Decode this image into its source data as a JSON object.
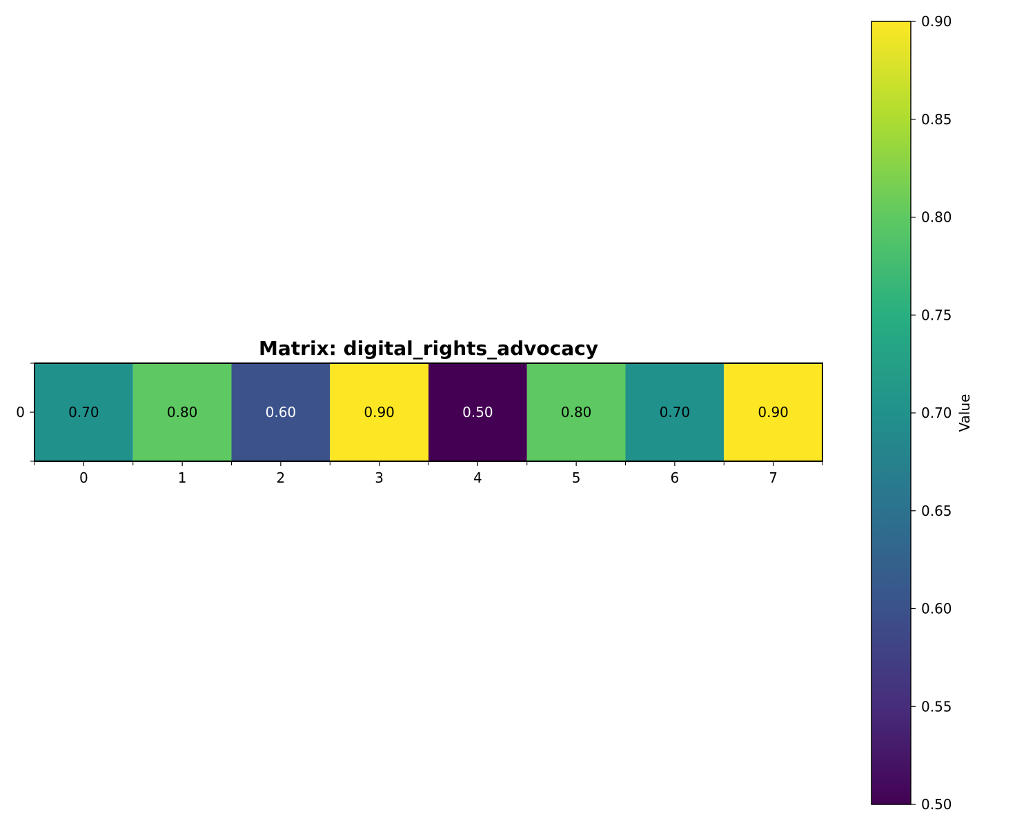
{
  "chart_data": {
    "type": "heatmap",
    "title": "Matrix: digital_rights_advocacy",
    "xlabel": "",
    "ylabel": "",
    "x_categories": [
      "0",
      "1",
      "2",
      "3",
      "4",
      "5",
      "6",
      "7"
    ],
    "y_categories": [
      "0"
    ],
    "values": [
      [
        0.7,
        0.8,
        0.6,
        0.9,
        0.5,
        0.8,
        0.7,
        0.9
      ]
    ],
    "cell_labels": [
      [
        "0.70",
        "0.80",
        "0.60",
        "0.90",
        "0.50",
        "0.80",
        "0.70",
        "0.90"
      ]
    ],
    "colormap": "viridis",
    "vmin": 0.5,
    "vmax": 0.9,
    "colorbar": {
      "label": "Value",
      "ticks": [
        0.5,
        0.55,
        0.6,
        0.65,
        0.7,
        0.75,
        0.8,
        0.85,
        0.9
      ],
      "tick_labels": [
        "0.50",
        "0.55",
        "0.60",
        "0.65",
        "0.70",
        "0.75",
        "0.80",
        "0.85",
        "0.90"
      ]
    },
    "colors": {
      "0.50": "#440154",
      "0.60": "#3b528b",
      "0.70": "#21918c",
      "0.80": "#5ec962",
      "0.90": "#fde725"
    },
    "grid": false
  }
}
